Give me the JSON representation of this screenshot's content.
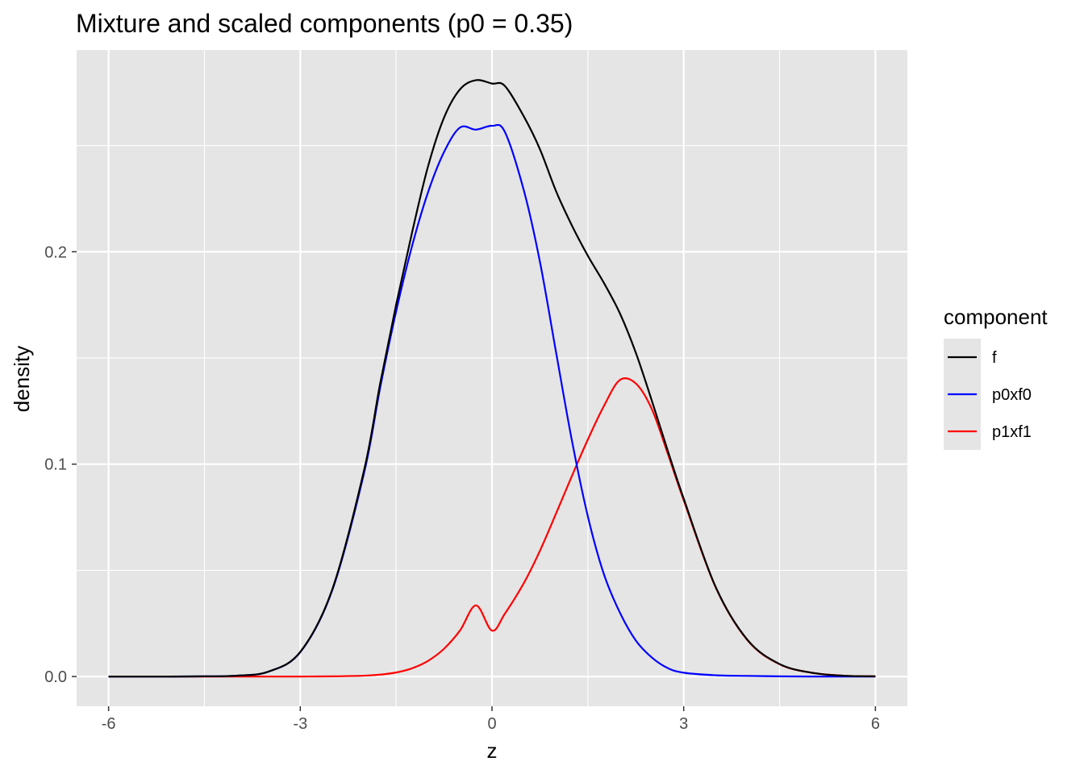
{
  "chart_data": {
    "type": "line",
    "title": "Mixture and scaled components (p0 = 0.35)",
    "xlabel": "z",
    "ylabel": "density",
    "xlim": [
      -6.5,
      6.5
    ],
    "ylim": [
      -0.014,
      0.295
    ],
    "x_ticks": [
      -6,
      -3,
      0,
      3,
      6
    ],
    "x_tick_labels": [
      "-6",
      "-3",
      "0",
      "3",
      "6"
    ],
    "y_ticks": [
      0.0,
      0.1,
      0.2
    ],
    "y_tick_labels": [
      "0.0",
      "0.1",
      "0.2"
    ],
    "grid": true,
    "panel_background": "#e5e5e5",
    "grid_color": "#ffffff",
    "legend": {
      "title": "component",
      "position": "right"
    },
    "x": [
      -6,
      -5.5,
      -5,
      -4.5,
      -4,
      -3.5,
      -3,
      -2.5,
      -2,
      -1.75,
      -1.5,
      -1.25,
      -1,
      -0.75,
      -0.5,
      -0.25,
      0,
      0.2,
      0.5,
      0.75,
      1,
      1.25,
      1.5,
      1.75,
      2,
      2.25,
      2.5,
      2.75,
      3,
      3.5,
      4,
      4.5,
      5,
      5.5,
      6
    ],
    "series": [
      {
        "name": "f",
        "color": "#000000",
        "values": [
          0.0,
          0.0,
          0.0,
          0.0001,
          0.0004,
          0.0023,
          0.0116,
          0.041,
          0.0974,
          0.138,
          0.1751,
          0.2092,
          0.2403,
          0.2632,
          0.2765,
          0.2808,
          0.2792,
          0.2781,
          0.2636,
          0.2483,
          0.2287,
          0.2124,
          0.1981,
          0.1854,
          0.1711,
          0.1525,
          0.13,
          0.1064,
          0.0838,
          0.0422,
          0.0172,
          0.0059,
          0.0018,
          0.0004,
          0.0001
        ]
      },
      {
        "name": "p0xf0",
        "color": "#0000ff",
        "values": [
          0.0,
          0.0,
          0.0,
          0.0001,
          0.0004,
          0.0023,
          0.0115,
          0.0406,
          0.0961,
          0.136,
          0.1719,
          0.2028,
          0.2281,
          0.247,
          0.2585,
          0.2575,
          0.2593,
          0.2565,
          0.2287,
          0.1953,
          0.1531,
          0.1112,
          0.0754,
          0.0483,
          0.0302,
          0.017,
          0.009,
          0.004,
          0.0018,
          0.0006,
          0.0003,
          0.0001,
          0.0,
          0.0,
          0.0
        ]
      },
      {
        "name": "p1xf1",
        "color": "#ff0000",
        "values": [
          0.0,
          0.0,
          0.0,
          0.0,
          0.0,
          0.0,
          0.0,
          0.0001,
          0.0004,
          0.0009,
          0.0019,
          0.0039,
          0.0074,
          0.0131,
          0.0217,
          0.0335,
          0.0216,
          0.0295,
          0.0441,
          0.0592,
          0.0766,
          0.0944,
          0.1116,
          0.1273,
          0.1396,
          0.138,
          0.126,
          0.105,
          0.083,
          0.042,
          0.017,
          0.0058,
          0.0018,
          0.0004,
          0.0001
        ]
      }
    ]
  }
}
